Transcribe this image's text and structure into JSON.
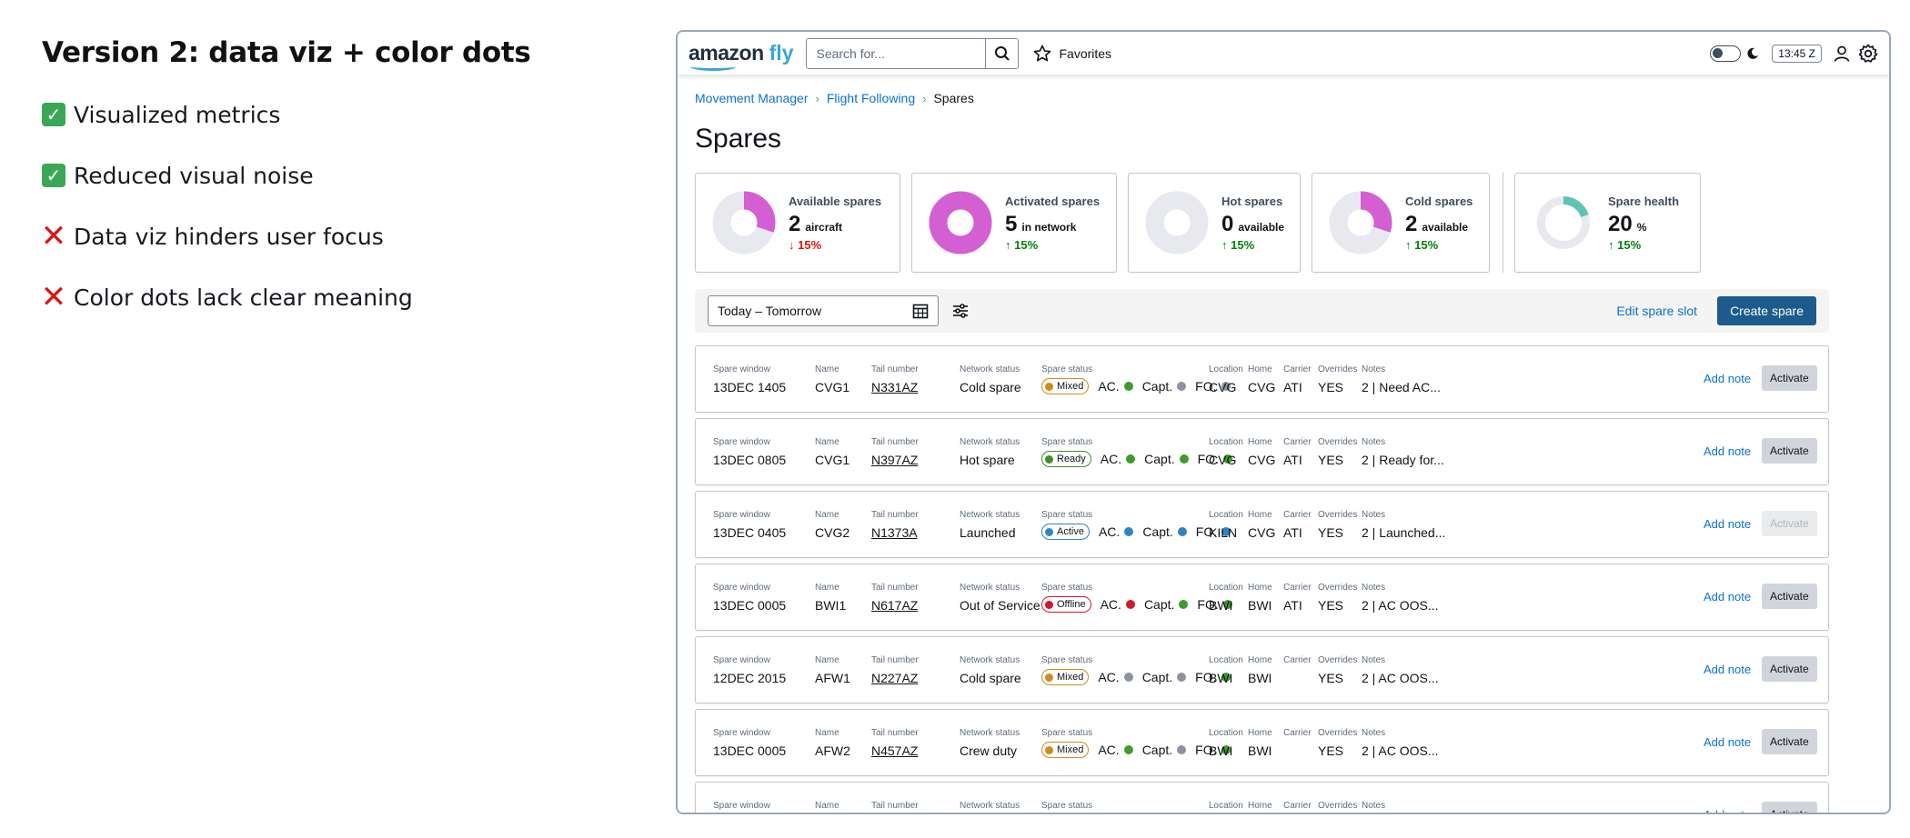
{
  "notes": {
    "title": "Version 2: data viz + color dots",
    "items": [
      {
        "kind": "pos",
        "text": "Visualized metrics"
      },
      {
        "kind": "pos",
        "text": "Reduced visual noise"
      },
      {
        "kind": "neg",
        "text": "Data viz hinders user focus"
      },
      {
        "kind": "neg",
        "text": "Color dots lack clear meaning"
      }
    ]
  },
  "header": {
    "logo_a": "amazon",
    "logo_b": "fly",
    "search_placeholder": "Search for...",
    "favorites_label": "Favorites",
    "clock": "13:45 Z"
  },
  "breadcrumb": [
    "Movement Manager",
    "Flight Following",
    "Spares"
  ],
  "page_title": "Spares",
  "metrics": [
    {
      "label": "Available spares",
      "value": "2",
      "unit": "aircraft",
      "delta": "15%",
      "dir": "down",
      "fraction": 0.3,
      "color": "#d45fd2"
    },
    {
      "label": "Activated spares",
      "value": "5",
      "unit": "in network",
      "delta": "15%",
      "dir": "up",
      "fraction": 1.0,
      "color": "#d45fd2"
    },
    {
      "label": "Hot spares",
      "value": "0",
      "unit": "available",
      "delta": "15%",
      "dir": "up",
      "fraction": 0.0,
      "color": "#d45fd2"
    },
    {
      "label": "Cold spares",
      "value": "2",
      "unit": "available",
      "delta": "15%",
      "dir": "up",
      "fraction": 0.3,
      "color": "#d45fd2"
    },
    {
      "label": "Spare health",
      "value": "20",
      "unit": "%",
      "delta": "15%",
      "dir": "up",
      "fraction": 0.2,
      "color": "#5fc5b3"
    }
  ],
  "filters": {
    "date_range": "Today – Tomorrow",
    "edit_label": "Edit spare slot",
    "create_label": "Create spare"
  },
  "columns": {
    "window": "Spare window",
    "name": "Name",
    "tail": "Tail number",
    "network": "Network status",
    "spare": "Spare status",
    "location": "Location",
    "home": "Home",
    "carrier": "Carrier",
    "overrides": "Overrides",
    "notes": "Notes"
  },
  "dot_labels": {
    "ac": "AC.",
    "capt": "Capt.",
    "fo": "FO."
  },
  "row_actions": {
    "add_note": "Add note",
    "activate": "Activate"
  },
  "status_colors": {
    "Mixed": "#d08b1f",
    "Ready": "#3e8e2b",
    "Active": "#2e86c1",
    "Offline": "#d0182f"
  },
  "dot_colors": {
    "green": "#3e9b2c",
    "gray": "#8d939c",
    "blue": "#2e86c1",
    "red": "#d0182f"
  },
  "rows": [
    {
      "window": "13DEC 1405",
      "name": "CVG1",
      "tail": "N331AZ",
      "network": "Cold spare",
      "status": "Mixed",
      "ac": "green",
      "capt": "gray",
      "fo": "gray",
      "location": "CVG",
      "home": "CVG",
      "carrier": "ATI",
      "overrides": "YES",
      "notes": "2  |  Need AC...",
      "activate_enabled": true
    },
    {
      "window": "13DEC 0805",
      "name": "CVG1",
      "tail": "N397AZ",
      "network": "Hot spare",
      "status": "Ready",
      "ac": "green",
      "capt": "green",
      "fo": "green",
      "location": "CVG",
      "home": "CVG",
      "carrier": "ATI",
      "overrides": "YES",
      "notes": "2  |  Ready for...",
      "activate_enabled": true
    },
    {
      "window": "13DEC 0405",
      "name": "CVG2",
      "tail": "N1373A",
      "network": "Launched",
      "status": "Active",
      "ac": "blue",
      "capt": "blue",
      "fo": "blue",
      "location": "KILN",
      "home": "CVG",
      "carrier": "ATI",
      "overrides": "YES",
      "notes": "2  |  Launched...",
      "activate_enabled": false
    },
    {
      "window": "13DEC 0005",
      "name": "BWI1",
      "tail": "N617AZ",
      "network": "Out of Service",
      "status": "Offline",
      "ac": "red",
      "capt": "green",
      "fo": "green",
      "location": "BWI",
      "home": "BWI",
      "carrier": "ATI",
      "overrides": "YES",
      "notes": "2  |  AC OOS...",
      "activate_enabled": true
    },
    {
      "window": "12DEC 2015",
      "name": "AFW1",
      "tail": "N227AZ",
      "network": "Cold spare",
      "status": "Mixed",
      "ac": "gray",
      "capt": "gray",
      "fo": "green",
      "location": "BWI",
      "home": "BWI",
      "carrier": "",
      "overrides": "YES",
      "notes": "2  |  AC OOS...",
      "activate_enabled": true
    },
    {
      "window": "13DEC 0005",
      "name": "AFW2",
      "tail": "N457AZ",
      "network": "Crew duty",
      "status": "Mixed",
      "ac": "green",
      "capt": "gray",
      "fo": "green",
      "location": "BWI",
      "home": "BWI",
      "carrier": "",
      "overrides": "YES",
      "notes": "2  |  AC OOS...",
      "activate_enabled": true
    },
    {
      "window": "",
      "name": "",
      "tail": "",
      "network": "",
      "status": "",
      "ac": "",
      "capt": "",
      "fo": "",
      "location": "",
      "home": "",
      "carrier": "",
      "overrides": "",
      "notes": "",
      "activate_enabled": true
    }
  ]
}
